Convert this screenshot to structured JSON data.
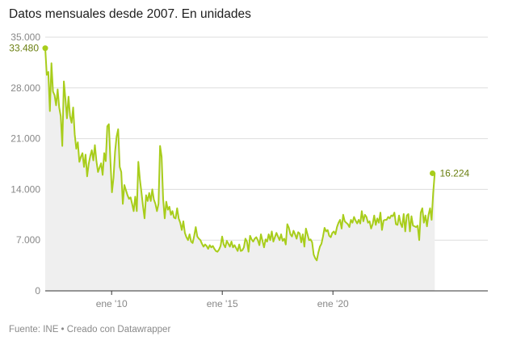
{
  "title": "Datos mensuales desde 2007. En unidades",
  "footer": "Fuente: INE • Creado con Datawrapper",
  "colors": {
    "line": "#a8cd1b",
    "area": "#efefef",
    "label": "#6a7f10",
    "grid": "#dddddd",
    "axis": "#333333",
    "tick": "#888888"
  },
  "chart_data": {
    "type": "area",
    "xlabel": "",
    "ylabel": "",
    "ylim": [
      0,
      35000
    ],
    "yticks": [
      0,
      7000,
      14000,
      21000,
      28000,
      35000
    ],
    "ytick_labels": [
      "0",
      "7.000",
      "14.000",
      "21.000",
      "28.000",
      "35.000"
    ],
    "xticks": [
      {
        "label": "ene '10",
        "x": 2010.0
      },
      {
        "label": "ene '15",
        "x": 2015.0
      },
      {
        "label": "ene '20",
        "x": 2020.0
      }
    ],
    "xlim": [
      2007.0,
      2024.6
    ],
    "annotations": [
      {
        "label": "33.480",
        "x": 2007.0,
        "y": 33480
      },
      {
        "label": "16.224",
        "x": 2024.5,
        "y": 16224
      }
    ],
    "series": [
      {
        "values": [
          33480,
          29800,
          30200,
          24800,
          31400,
          27500,
          27000,
          25600,
          27800,
          25300,
          24100,
          20000,
          28900,
          26500,
          23800,
          26800,
          24100,
          23200,
          25300,
          21600,
          19600,
          20500,
          17800,
          18500,
          19000,
          17100,
          18800,
          15800,
          17500,
          18600,
          19400,
          18000,
          20100,
          17900,
          16400,
          17000,
          17600,
          16000,
          19000,
          17900,
          22700,
          23000,
          18000,
          13600,
          15600,
          19200,
          21300,
          22300,
          17100,
          16400,
          12000,
          14600,
          13900,
          13200,
          12700,
          12900,
          12000,
          11000,
          13000,
          11000,
          17800,
          15400,
          13600,
          11700,
          10000,
          13200,
          12400,
          13500,
          12400,
          14000,
          12600,
          12000,
          11000,
          12000,
          20000,
          18500,
          12600,
          10000,
          12300,
          11200,
          11600,
          10500,
          11000,
          10100,
          10000,
          11400,
          10000,
          9400,
          8400,
          9600,
          8000,
          7400,
          7000,
          7800,
          6800,
          6600,
          7600,
          8800,
          7500,
          7200,
          7000,
          6500,
          6100,
          6400,
          6200,
          5800,
          6300,
          6000,
          6200,
          5800,
          5500,
          5400,
          5700,
          6200,
          7500,
          6400,
          6000,
          6900,
          6500,
          6100,
          6800,
          6000,
          6300,
          5900,
          5500,
          6400,
          5500,
          5600,
          6000,
          7200,
          6800,
          5400,
          7600,
          7100,
          6800,
          7200,
          7400,
          7000,
          6300,
          7800,
          6900,
          6000,
          7100,
          6800,
          7800,
          7000,
          8200,
          6800,
          7400,
          8000,
          7500,
          7000,
          7800,
          6900,
          7200,
          6400,
          9200,
          8700,
          7800,
          7500,
          8300,
          7800,
          7200,
          8100,
          7900,
          6700,
          7800,
          6100,
          8600,
          7800,
          7000,
          7100,
          6700,
          5000,
          4500,
          4200,
          5300,
          6100,
          6500,
          7500,
          8700,
          8200,
          8400,
          7600,
          7400,
          8000,
          8200,
          7800,
          8800,
          9400,
          9800,
          8600,
          10500,
          9600,
          9400,
          9200,
          8800,
          9800,
          9400,
          10200,
          9700,
          9300,
          9800,
          9300,
          11000,
          9600,
          10500,
          10200,
          9400,
          9600,
          8600,
          9200,
          10400,
          9100,
          10000,
          9400,
          10800,
          8400,
          9700,
          9800,
          9800,
          10200,
          10000,
          10400,
          10300,
          10800,
          9200,
          9100,
          10400,
          9300,
          8800,
          10600,
          8200,
          10400,
          10600,
          8200,
          10300,
          9000,
          8900,
          8800,
          9000,
          7000,
          10800,
          11400,
          9400,
          10400,
          8900,
          10500,
          11400,
          9800,
          13500,
          16224
        ]
      }
    ],
    "grid": true,
    "legend": "none"
  }
}
